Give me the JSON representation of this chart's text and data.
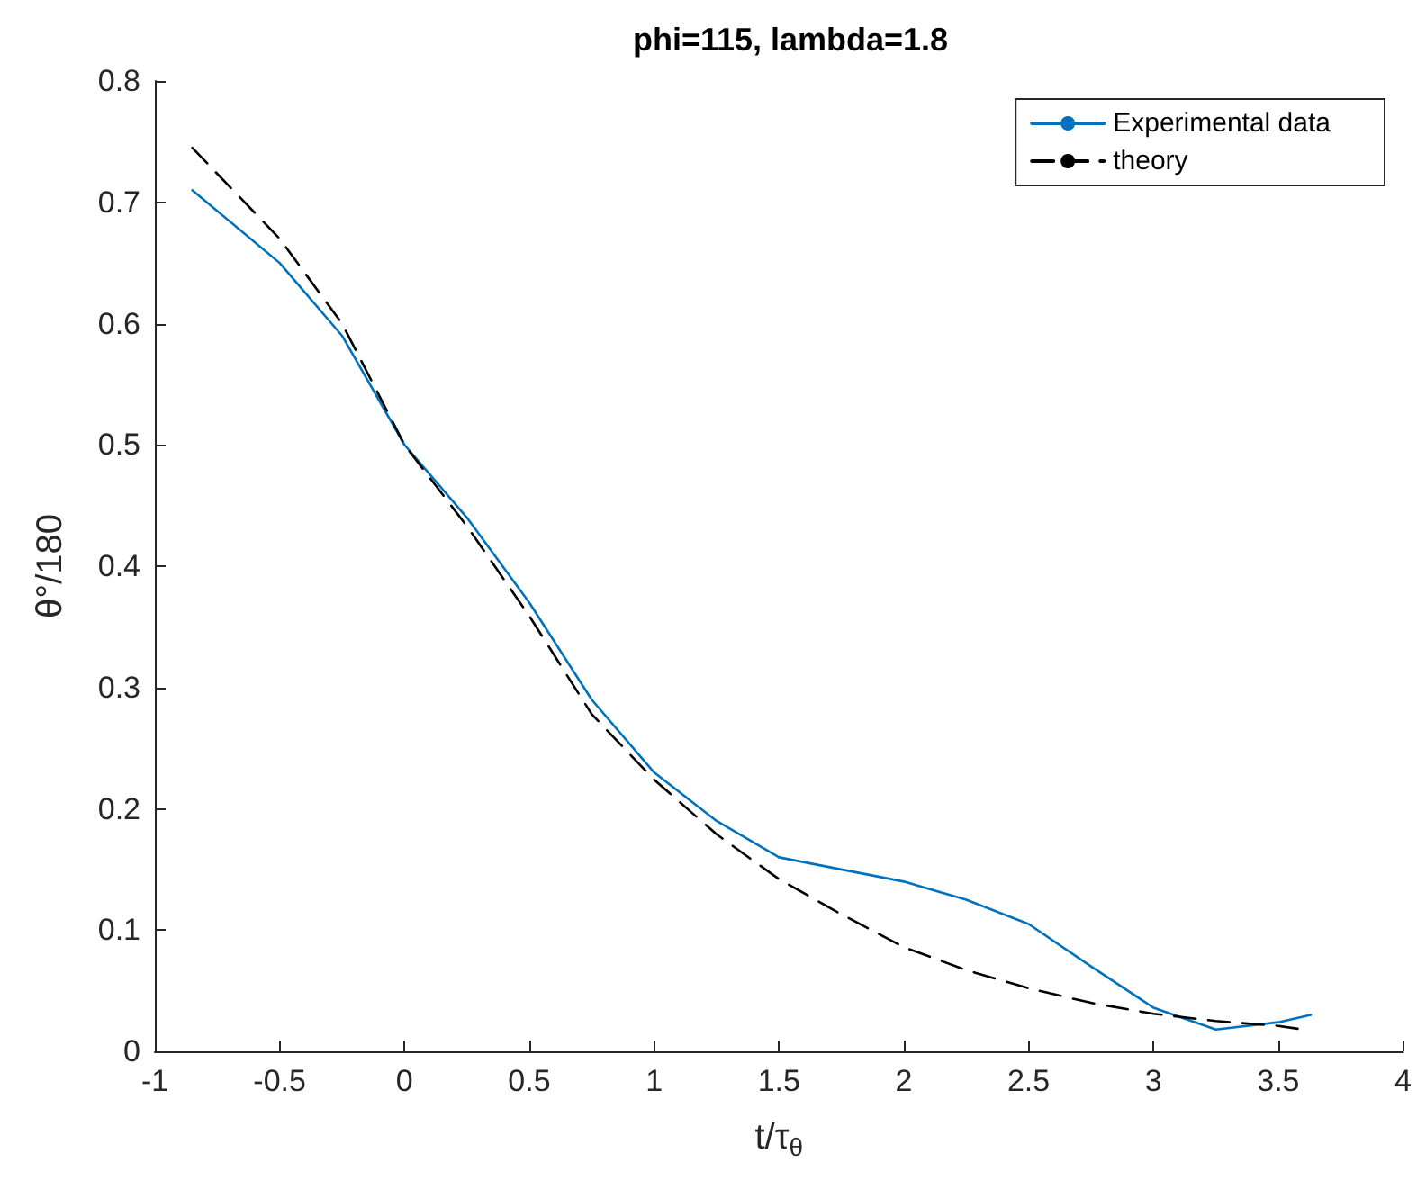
{
  "chart_data": {
    "type": "line",
    "title": "phi=115, lambda=1.8",
    "xlabel": "t/τ$_{θ}$",
    "ylabel": "θ°/180",
    "xlim": [
      -1,
      4
    ],
    "xticks": [
      -1,
      -0.5,
      0,
      0.5,
      1,
      1.5,
      2,
      2.5,
      3,
      3.5,
      4
    ],
    "ylim": [
      0,
      0.8
    ],
    "yticks": [
      0,
      0.1,
      0.2,
      0.3,
      0.4,
      0.5,
      0.6,
      0.7,
      0.8
    ],
    "grid": false,
    "legend": "top right",
    "marker": "none",
    "series": [
      {
        "name": "Experimental data",
        "color": "#0072bd",
        "line_style": "solid",
        "x": [
          -0.85,
          -0.5,
          -0.25,
          0,
          0.25,
          0.5,
          0.75,
          1,
          1.25,
          1.5,
          1.75,
          2,
          2.25,
          2.5,
          2.75,
          3,
          3.25,
          3.5,
          3.63
        ],
        "values": [
          0.71,
          0.65,
          0.59,
          0.5,
          0.44,
          0.37,
          0.29,
          0.23,
          0.19,
          0.16,
          0.15,
          0.14,
          0.125,
          0.105,
          0.07,
          0.036,
          0.018,
          0.024,
          0.03
        ]
      },
      {
        "name": "theory",
        "color": "#000000",
        "line_style": "dashed",
        "x": [
          -0.85,
          -0.5,
          -0.25,
          0,
          0.25,
          0.5,
          0.75,
          1,
          1.25,
          1.5,
          1.75,
          2,
          2.25,
          2.5,
          2.75,
          3,
          3.25,
          3.5,
          3.6
        ],
        "values": [
          0.745,
          0.67,
          0.6,
          0.5,
          0.433,
          0.359,
          0.278,
          0.224,
          0.179,
          0.142,
          0.113,
          0.086,
          0.067,
          0.052,
          0.04,
          0.031,
          0.025,
          0.021,
          0.018
        ]
      }
    ]
  }
}
